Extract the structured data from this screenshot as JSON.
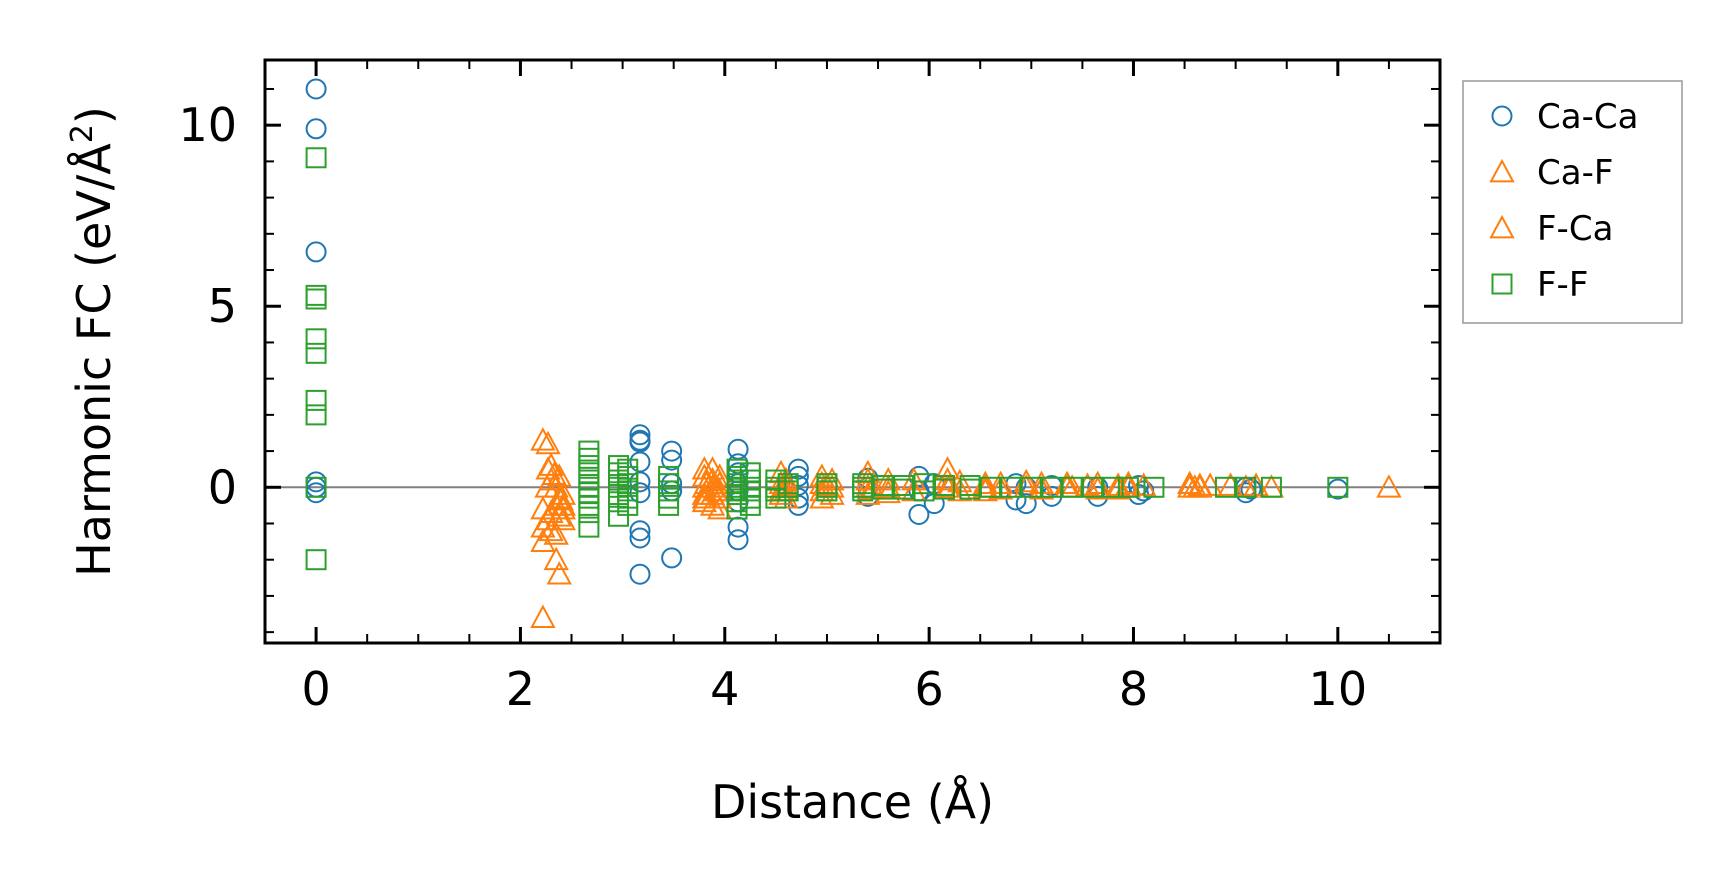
{
  "chart_data": {
    "type": "scatter",
    "title": "",
    "xlabel": "Distance (Å)",
    "ylabel_prefix": "Harmonic FC (eV/Å",
    "ylabel_sup": "2",
    "ylabel_suffix": ")",
    "xlim": [
      -0.5,
      11.0
    ],
    "ylim": [
      -4.3,
      11.8
    ],
    "xticks": [
      0,
      2,
      4,
      6,
      8,
      10
    ],
    "yticks": [
      0,
      5,
      10
    ],
    "xtick_labels": [
      "0",
      "2",
      "4",
      "6",
      "8",
      "10"
    ],
    "ytick_labels": [
      "0",
      "5",
      "10"
    ],
    "zero_line": 0,
    "legend_position": "outside-right",
    "series": [
      {
        "name": "Ca-Ca",
        "marker": "circle",
        "color": "#1f77b4",
        "x": [
          0,
          0,
          0,
          0,
          0,
          0,
          3.17,
          3.17,
          3.17,
          3.17,
          3.17,
          3.17,
          3.17,
          3.17,
          3.17,
          3.48,
          3.48,
          3.48,
          3.48,
          3.48,
          4.13,
          4.13,
          4.13,
          4.13,
          4.13,
          4.13,
          4.13,
          4.13,
          4.72,
          4.72,
          4.72,
          4.72,
          4.72,
          5.4,
          5.4,
          5.4,
          5.9,
          5.9,
          5.9,
          6.05,
          6.05,
          6.85,
          6.85,
          6.95,
          6.95,
          7.2,
          7.2,
          7.65,
          7.65,
          8.05,
          8.05,
          8.1,
          9.1,
          9.1,
          9.15,
          10.0
        ],
        "y": [
          11.0,
          9.9,
          6.5,
          0.15,
          0.0,
          -0.15,
          1.45,
          1.3,
          1.25,
          0.7,
          0.15,
          -0.15,
          -1.2,
          -1.4,
          -2.4,
          1.0,
          0.75,
          0.1,
          -0.1,
          -1.95,
          1.05,
          0.65,
          0.4,
          0.1,
          -0.1,
          -0.4,
          -1.1,
          -1.45,
          0.5,
          0.3,
          0.05,
          -0.3,
          -0.5,
          0.25,
          0.0,
          -0.25,
          0.3,
          -0.1,
          -0.75,
          0.1,
          -0.45,
          0.1,
          -0.35,
          0.0,
          -0.45,
          0.05,
          -0.25,
          0.0,
          -0.25,
          0.05,
          -0.2,
          -0.1,
          0.0,
          -0.15,
          -0.05,
          -0.05
        ]
      },
      {
        "name": "Ca-F",
        "marker": "triangle",
        "color": "#ff7f0e",
        "x": [
          2.22,
          2.22,
          2.22,
          2.22,
          2.22,
          2.27,
          2.27,
          2.27,
          2.3,
          2.3,
          2.3,
          2.3,
          2.35,
          2.35,
          2.35,
          2.35,
          2.38,
          2.38,
          2.38,
          2.38,
          2.42,
          2.42,
          2.42,
          2.42,
          3.8,
          3.8,
          3.8,
          3.8,
          3.8,
          3.8,
          3.88,
          3.88,
          3.88,
          3.88,
          3.88,
          3.95,
          3.95,
          3.95,
          3.95,
          3.95,
          4.55,
          4.55,
          4.55,
          4.55,
          4.6,
          4.6,
          4.6,
          4.6,
          4.95,
          4.95,
          4.95,
          4.95,
          5.05,
          5.05,
          5.05,
          5.4,
          5.4,
          5.4,
          5.4,
          5.6,
          5.6,
          5.6,
          5.85,
          5.85,
          6.18,
          6.18,
          6.18,
          6.3,
          6.3,
          6.55,
          6.55,
          6.55,
          6.7,
          6.7,
          6.95,
          6.95,
          7.1,
          7.1,
          7.35,
          7.35,
          7.55,
          7.65,
          7.65,
          7.85,
          7.85,
          7.95,
          7.95,
          8.1,
          8.55,
          8.55,
          8.65,
          8.65,
          8.75,
          8.95,
          9.1,
          9.2,
          9.35,
          10.5
        ],
        "y": [
          1.3,
          -0.6,
          -1.1,
          -1.5,
          -3.6,
          1.2,
          0.5,
          -0.9,
          0.6,
          0.2,
          -0.7,
          -1.2,
          -2.0,
          0.0,
          -0.5,
          -1.3,
          -2.4,
          0.3,
          -0.3,
          -0.8,
          -0.2,
          -0.9,
          -0.5,
          -0.6,
          0.5,
          0.3,
          0.0,
          -0.2,
          -0.3,
          -0.4,
          0.5,
          0.2,
          0.0,
          -0.2,
          -0.5,
          0.3,
          0.1,
          -0.1,
          -0.3,
          -0.6,
          0.4,
          0.1,
          -0.1,
          -0.2,
          0.2,
          0.05,
          -0.1,
          -0.3,
          0.3,
          0.1,
          -0.1,
          -0.3,
          0.2,
          0.0,
          -0.2,
          0.4,
          0.2,
          0.0,
          -0.2,
          0.2,
          0.0,
          -0.15,
          0.2,
          -0.1,
          0.5,
          0.2,
          0.0,
          0.15,
          -0.1,
          0.1,
          0.0,
          -0.1,
          0.1,
          -0.05,
          0.15,
          0.0,
          0.1,
          -0.05,
          0.1,
          0.0,
          0.05,
          0.1,
          -0.05,
          0.05,
          -0.05,
          0.1,
          0.0,
          0.05,
          0.1,
          0.0,
          0.05,
          0.0,
          0.05,
          0.05,
          0.0,
          0.05,
          0.0,
          0.0
        ]
      },
      {
        "name": "F-Ca",
        "marker": "triangle",
        "color": "#ff7f0e",
        "x": [
          2.26,
          2.33,
          2.4,
          3.82,
          3.92,
          4.57,
          5.0,
          5.45,
          6.2,
          7.4,
          8.6
        ],
        "y": [
          0.0,
          0.35,
          -0.35,
          0.1,
          -0.1,
          0.0,
          0.05,
          -0.05,
          0.0,
          0.0,
          0.0
        ]
      },
      {
        "name": "F-F",
        "marker": "square",
        "color": "#2ca02c",
        "x": [
          0,
          0,
          0,
          0,
          0,
          0,
          0,
          0,
          0,
          2.67,
          2.67,
          2.67,
          2.67,
          2.67,
          2.67,
          2.67,
          2.67,
          2.67,
          2.67,
          2.67,
          2.96,
          2.96,
          2.96,
          2.96,
          2.96,
          2.96,
          2.96,
          3.05,
          3.05,
          3.05,
          3.05,
          3.05,
          3.05,
          3.45,
          3.45,
          3.45,
          3.45,
          3.45,
          4.12,
          4.12,
          4.12,
          4.12,
          4.12,
          4.12,
          4.12,
          4.12,
          4.12,
          4.25,
          4.25,
          4.25,
          4.25,
          4.25,
          4.25,
          4.5,
          4.5,
          4.5,
          4.5,
          4.62,
          4.62,
          4.62,
          5.0,
          5.0,
          5.0,
          5.35,
          5.35,
          5.35,
          5.55,
          5.55,
          5.75,
          5.75,
          5.95,
          5.95,
          6.15,
          6.15,
          6.4,
          6.4,
          6.6,
          6.8,
          7.0,
          7.2,
          7.4,
          7.6,
          7.8,
          7.95,
          8.2,
          8.9,
          9.1,
          9.35,
          10.0
        ],
        "y": [
          9.1,
          5.3,
          5.2,
          4.1,
          3.7,
          2.4,
          2.0,
          0.0,
          -2.0,
          1.0,
          0.8,
          0.6,
          0.4,
          0.2,
          0.0,
          -0.15,
          -0.3,
          -0.5,
          -0.7,
          -1.1,
          0.6,
          0.4,
          0.2,
          0.0,
          -0.2,
          -0.4,
          -0.8,
          0.5,
          0.3,
          0.1,
          -0.1,
          -0.3,
          -0.5,
          0.3,
          0.1,
          -0.1,
          -0.3,
          -0.5,
          0.5,
          0.3,
          0.2,
          0.1,
          0.0,
          -0.1,
          -0.2,
          -0.4,
          -0.6,
          0.4,
          0.2,
          0.0,
          -0.1,
          -0.3,
          -0.5,
          0.2,
          0.0,
          -0.1,
          -0.3,
          0.1,
          0.0,
          -0.1,
          0.1,
          0.0,
          -0.1,
          0.1,
          0.0,
          -0.1,
          0.05,
          -0.05,
          0.05,
          -0.05,
          0.1,
          -0.1,
          0.05,
          -0.05,
          0.05,
          -0.05,
          0.0,
          0.0,
          0.0,
          0.0,
          0.0,
          0.0,
          0.0,
          0.0,
          0.0,
          0.0,
          0.0,
          0.0,
          0.0
        ]
      }
    ]
  }
}
